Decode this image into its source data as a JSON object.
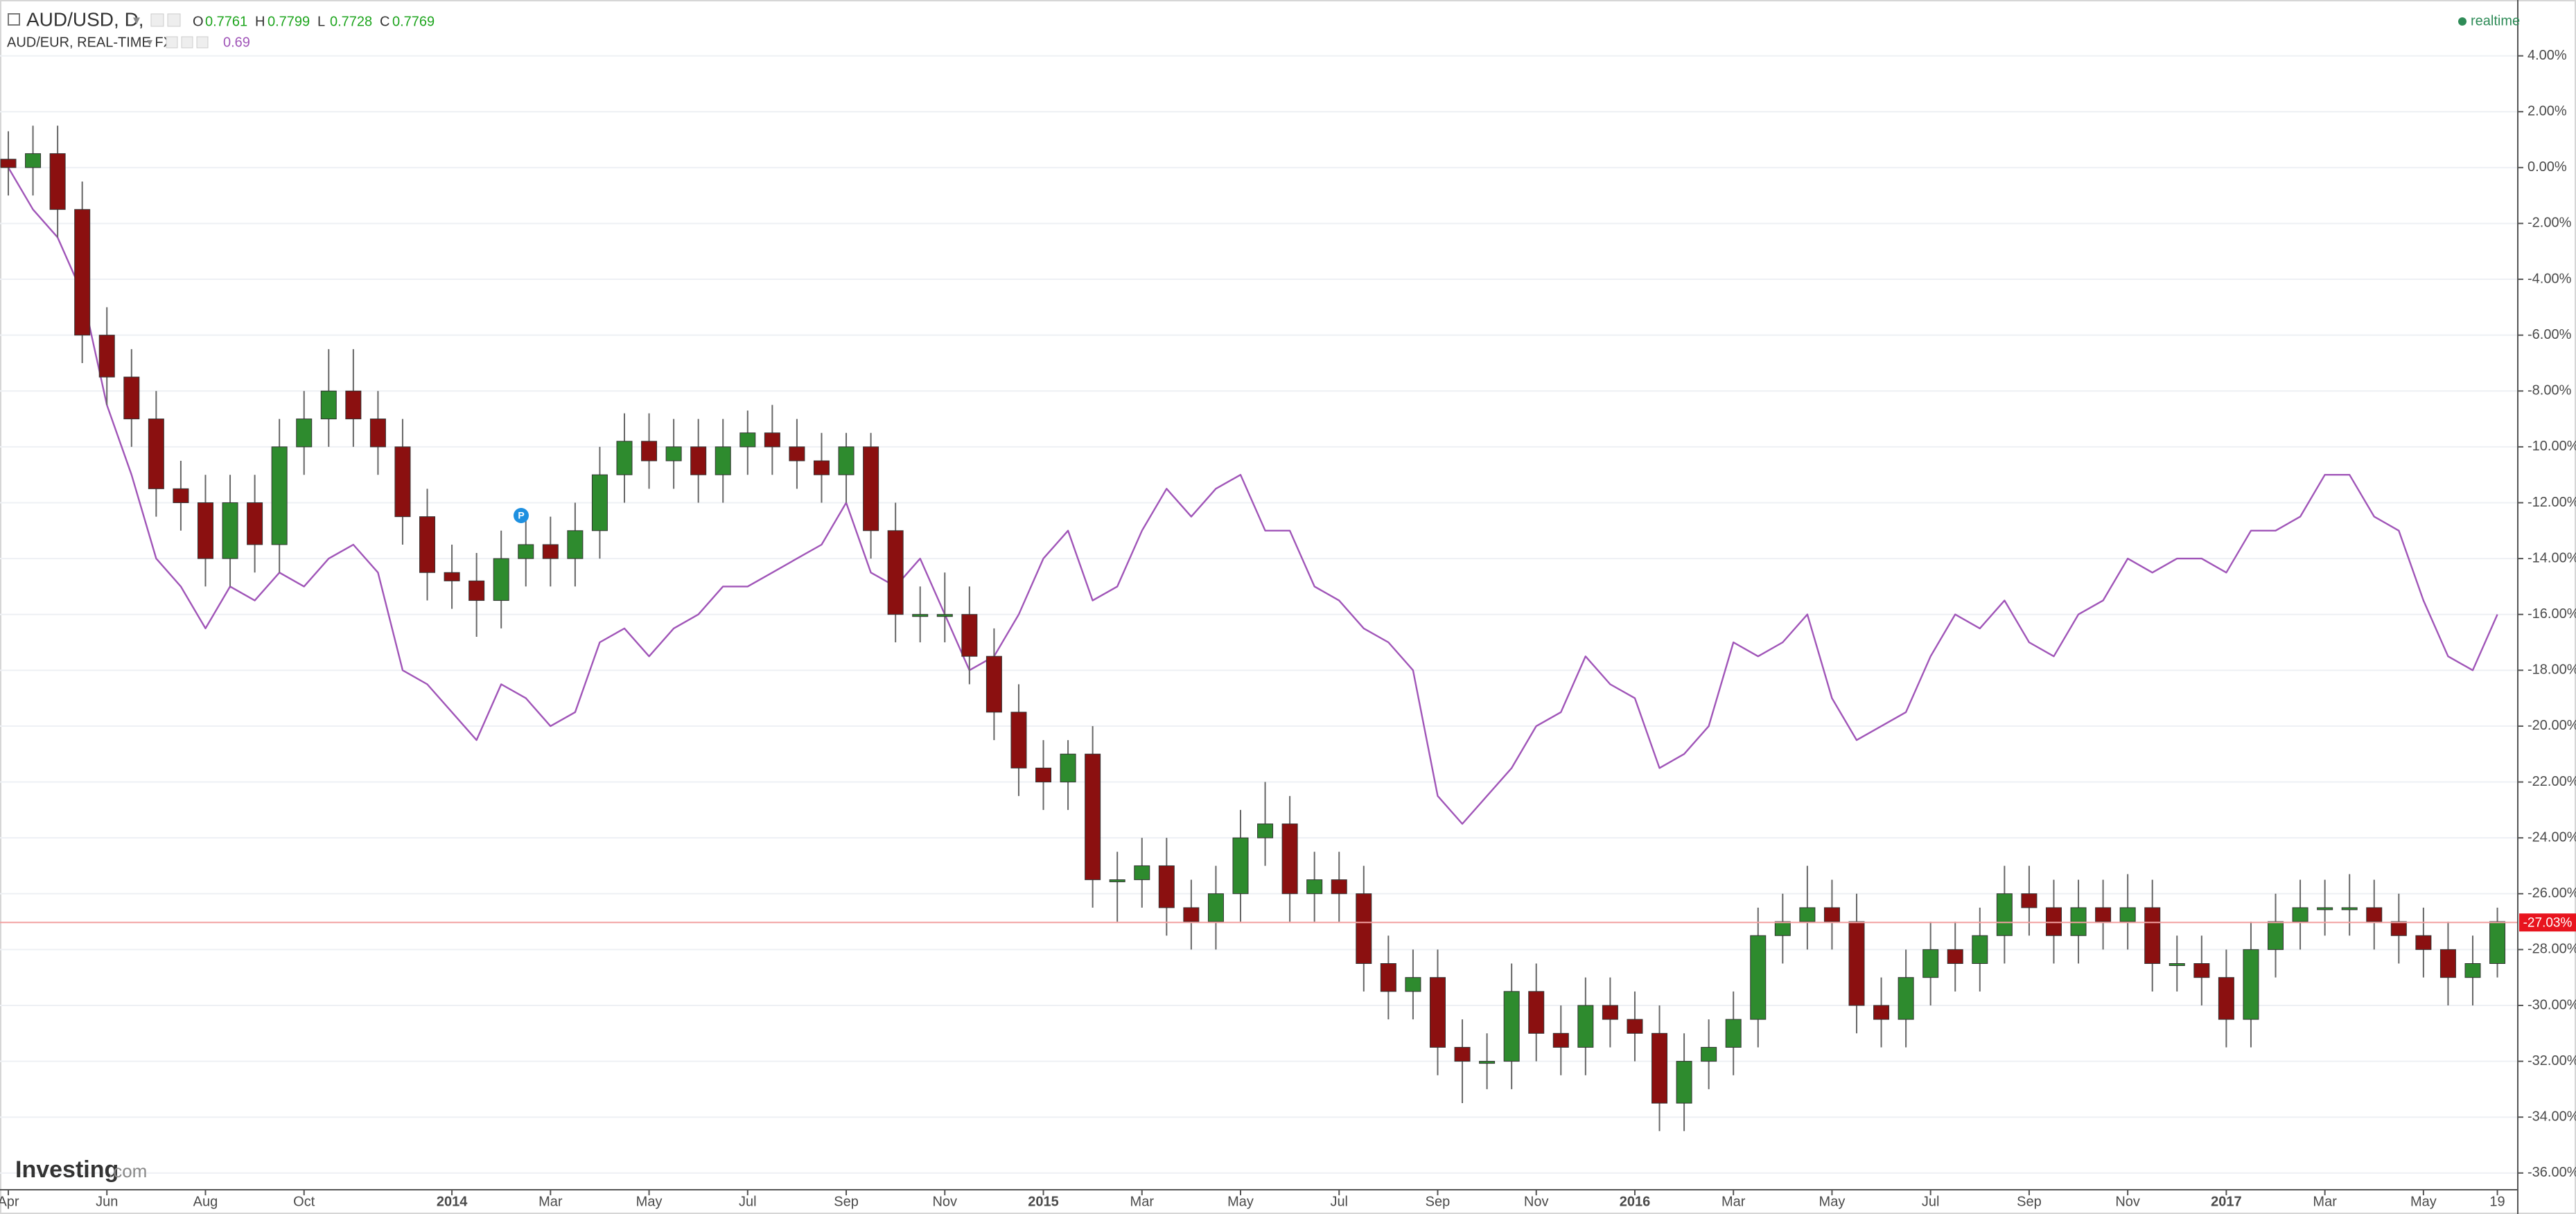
{
  "chart_data": {
    "type": "candlestick",
    "status": "realtime",
    "logo": "Investing",
    "logo_suffix": ".com",
    "marker_label": "P",
    "ohlc": [
      {
        "label": "O",
        "value": 0.7761
      },
      {
        "label": "H",
        "value": 0.7799
      },
      {
        "label": "L",
        "value": 0.7728
      },
      {
        "label": "C",
        "value": 0.7769
      }
    ],
    "compare_value": 0.69,
    "last_value": {
      "value": -27.03,
      "label": "-27.03%"
    },
    "categories": [
      "Apr",
      null,
      null,
      null,
      "Jun",
      null,
      null,
      null,
      "Aug",
      null,
      null,
      null,
      "Oct",
      null,
      null,
      null,
      null,
      null,
      "2014",
      null,
      null,
      null,
      "Mar",
      null,
      null,
      null,
      "May",
      null,
      null,
      null,
      "Jul",
      null,
      null,
      null,
      "Sep",
      null,
      null,
      null,
      "Nov",
      null,
      null,
      null,
      "2015",
      null,
      null,
      null,
      "Mar",
      null,
      null,
      null,
      "May",
      null,
      null,
      null,
      "Jul",
      null,
      null,
      null,
      "Sep",
      null,
      null,
      null,
      "Nov",
      null,
      null,
      null,
      "2016",
      null,
      null,
      null,
      "Mar",
      null,
      null,
      null,
      "May",
      null,
      null,
      null,
      "Jul",
      null,
      null,
      null,
      "Sep",
      null,
      null,
      null,
      "Nov",
      null,
      null,
      null,
      "2017",
      null,
      null,
      null,
      "Mar",
      null,
      null,
      null,
      "May",
      null,
      null,
      "19"
    ],
    "ylim": [
      -36.6,
      6
    ],
    "yticks": [
      {
        "value": 4,
        "label": "4.00%"
      },
      {
        "value": 2,
        "label": "2.00%"
      },
      {
        "value": 0,
        "label": "0.00%"
      },
      {
        "value": -2,
        "label": "-2.00%"
      },
      {
        "value": -4,
        "label": "-4.00%"
      },
      {
        "value": -6,
        "label": "-6.00%"
      },
      {
        "value": -8,
        "label": "-8.00%"
      },
      {
        "value": -10,
        "label": "-10.00%"
      },
      {
        "value": -12,
        "label": "-12.00%"
      },
      {
        "value": -14,
        "label": "-14.00%"
      },
      {
        "value": -16,
        "label": "-16.00%"
      },
      {
        "value": -18,
        "label": "-18.00%"
      },
      {
        "value": -20,
        "label": "-20.00%"
      },
      {
        "value": -22,
        "label": "-22.00%"
      },
      {
        "value": -24,
        "label": "-24.00%"
      },
      {
        "value": -26,
        "label": "-26.00%"
      },
      {
        "value": -28,
        "label": "-28.00%"
      },
      {
        "value": -30,
        "label": "-30.00%"
      },
      {
        "value": -32,
        "label": "-32.00%"
      },
      {
        "value": -34,
        "label": "-34.00%"
      },
      {
        "value": -36,
        "label": "-36.00%"
      }
    ],
    "grid": true,
    "series": [
      {
        "name": "AUD/USD, D,",
        "type": "candlestick",
        "up_color": "#2e8b2e",
        "down_color": "#8b1010",
        "open": [
          0.3,
          0,
          0.5,
          -1.5,
          -6,
          -7.5,
          -9,
          -11.5,
          -12,
          -14,
          -12,
          -13.5,
          -10,
          -9,
          -8,
          -9,
          -10,
          -12.5,
          -14.5,
          -14.8,
          -15.5,
          -14,
          -13.5,
          -14,
          -13,
          -11,
          -9.8,
          -10.5,
          -10,
          -11,
          -10,
          -9.5,
          -10,
          -10.5,
          -11,
          -10,
          -13,
          -16,
          -16,
          -16,
          -17.5,
          -19.5,
          -21.5,
          -22,
          -21,
          -25.5,
          -25.5,
          -25,
          -26.5,
          -27,
          -26,
          -24,
          -23.5,
          -26,
          -25.5,
          -26,
          -28.5,
          -29.5,
          -29,
          -31.5,
          -32,
          -32,
          -29.5,
          -31,
          -31.5,
          -30,
          -30.5,
          -31,
          -33.5,
          -32,
          -31.5,
          -30.5,
          -27.5,
          -27,
          -26.5,
          -27,
          -30,
          -30.5,
          -29,
          -28,
          -28.5,
          -27.5,
          -26,
          -26.5,
          -27.5,
          -26.5,
          -27,
          -26.5,
          -28.5,
          -28.5,
          -29,
          -30.5,
          -28,
          -27,
          -26.5,
          -26.5,
          -26.5,
          -27,
          -27.5,
          -28,
          -29,
          -28.5
        ],
        "high": [
          1.3,
          1.5,
          1.5,
          -0.5,
          -5,
          -6.5,
          -8,
          -10.5,
          -11,
          -11,
          -11,
          -9,
          -8,
          -6.5,
          -6.5,
          -8,
          -9,
          -11.5,
          -13.5,
          -13.8,
          -13,
          -12.5,
          -12.5,
          -12,
          -10,
          -8.8,
          -8.8,
          -9,
          -9,
          -9,
          -8.7,
          -8.5,
          -9,
          -9.5,
          -9.5,
          -9.5,
          -12,
          -15,
          -14.5,
          -15,
          -16.5,
          -18.5,
          -20.5,
          -20.5,
          -20,
          -24.5,
          -24,
          -24,
          -25.5,
          -25,
          -23,
          -22,
          -22.5,
          -24.5,
          -24.5,
          -25,
          -27.5,
          -28,
          -28,
          -30.5,
          -31,
          -28.5,
          -28.5,
          -30,
          -29,
          -29,
          -29.5,
          -30,
          -31,
          -30.5,
          -29.5,
          -26.5,
          -26,
          -25,
          -25.5,
          -26,
          -29,
          -28,
          -27,
          -27,
          -26.5,
          -25,
          -25,
          -25.5,
          -25.5,
          -25.5,
          -25.3,
          -25.5,
          -27.5,
          -27.5,
          -28,
          -27,
          -26,
          -25.5,
          -25.5,
          -25.3,
          -25.5,
          -26,
          -26.5,
          -27,
          -27.5,
          -26.5
        ],
        "low": [
          -1,
          -1,
          -2.5,
          -7,
          -8.5,
          -10,
          -12.5,
          -13,
          -15,
          -15,
          -14.5,
          -14.5,
          -11,
          -10,
          -10,
          -11,
          -13.5,
          -15.5,
          -15.8,
          -16.8,
          -16.5,
          -15,
          -15,
          -15,
          -14,
          -12,
          -11.5,
          -11.5,
          -12,
          -12,
          -11,
          -11,
          -11.5,
          -12,
          -12,
          -14,
          -17,
          -17,
          -17,
          -18.5,
          -20.5,
          -22.5,
          -23,
          -23,
          -26.5,
          -27,
          -26.5,
          -27.5,
          -28,
          -28,
          -27,
          -25,
          -27,
          -27,
          -27,
          -29.5,
          -30.5,
          -30.5,
          -32.5,
          -33.5,
          -33,
          -33,
          -32,
          -32.5,
          -32.5,
          -31.5,
          -32,
          -34.5,
          -34.5,
          -33,
          -32.5,
          -31.5,
          -28.5,
          -28,
          -28,
          -31,
          -31.5,
          -31.5,
          -30,
          -29.5,
          -29.5,
          -28.5,
          -27.5,
          -28.5,
          -28.5,
          -28,
          -28,
          -29.5,
          -29.5,
          -30,
          -31.5,
          -31.5,
          -29,
          -28,
          -27.5,
          -27.5,
          -28,
          -28.5,
          -29,
          -30,
          -30,
          -29
        ],
        "close": [
          0,
          0.5,
          -1.5,
          -6,
          -7.5,
          -9,
          -11.5,
          -12,
          -14,
          -12,
          -13.5,
          -10,
          -9,
          -8,
          -9,
          -10,
          -12.5,
          -14.5,
          -14.8,
          -15.5,
          -14,
          -13.5,
          -14,
          -13,
          -11,
          -9.8,
          -10.5,
          -10,
          -11,
          -10,
          -9.5,
          -10,
          -10.5,
          -11,
          -10,
          -13,
          -16,
          -16,
          -16,
          -17.5,
          -19.5,
          -21.5,
          -22,
          -21,
          -25.5,
          -25.5,
          -25,
          -26.5,
          -27,
          -26,
          -24,
          -23.5,
          -26,
          -25.5,
          -26,
          -28.5,
          -29.5,
          -29,
          -31.5,
          -32,
          -32,
          -29.5,
          -31,
          -31.5,
          -30,
          -30.5,
          -31,
          -33.5,
          -32,
          -31.5,
          -30.5,
          -27.5,
          -27,
          -26.5,
          -27,
          -30,
          -30.5,
          -29,
          -28,
          -28.5,
          -27.5,
          -26,
          -26.5,
          -27.5,
          -26.5,
          -27,
          -26.5,
          -28.5,
          -28.5,
          -29,
          -30.5,
          -28,
          -27,
          -26.5,
          -26.5,
          -26.5,
          -27,
          -27.5,
          -28,
          -29,
          -28.5,
          -27
        ]
      },
      {
        "name": "AUD/EUR, REAL-TIME FX",
        "type": "line",
        "color": "#a055b8",
        "values": [
          0,
          -1.5,
          -2.5,
          -4.5,
          -8.5,
          -11,
          -14,
          -15,
          -16.5,
          -15,
          -15.5,
          -14.5,
          -15,
          -14,
          -13.5,
          -14.5,
          -18,
          -18.5,
          -19.5,
          -20.5,
          -18.5,
          -19,
          -20,
          -19.5,
          -17,
          -16.5,
          -17.5,
          -16.5,
          -16,
          -15,
          -15,
          -14.5,
          -14,
          -13.5,
          -12,
          -14.5,
          -15,
          -14,
          -16,
          -18,
          -17.5,
          -16,
          -14,
          -13,
          -15.5,
          -15,
          -13,
          -11.5,
          -12.5,
          -11.5,
          -11,
          -13,
          -13,
          -15,
          -15.5,
          -16.5,
          -17,
          -18,
          -22.5,
          -23.5,
          -22.5,
          -21.5,
          -20,
          -19.5,
          -17.5,
          -18.5,
          -19,
          -21.5,
          -21,
          -20,
          -17,
          -17.5,
          -17,
          -16,
          -19,
          -20.5,
          -20,
          -19.5,
          -17.5,
          -16,
          -16.5,
          -15.5,
          -17,
          -17.5,
          -16,
          -15.5,
          -14,
          -14.5,
          -14,
          -14,
          -14.5,
          -13,
          -13,
          -12.5,
          -11,
          -11,
          -12.5,
          -13,
          -15.5,
          -17.5,
          -18,
          -16
        ]
      }
    ]
  }
}
